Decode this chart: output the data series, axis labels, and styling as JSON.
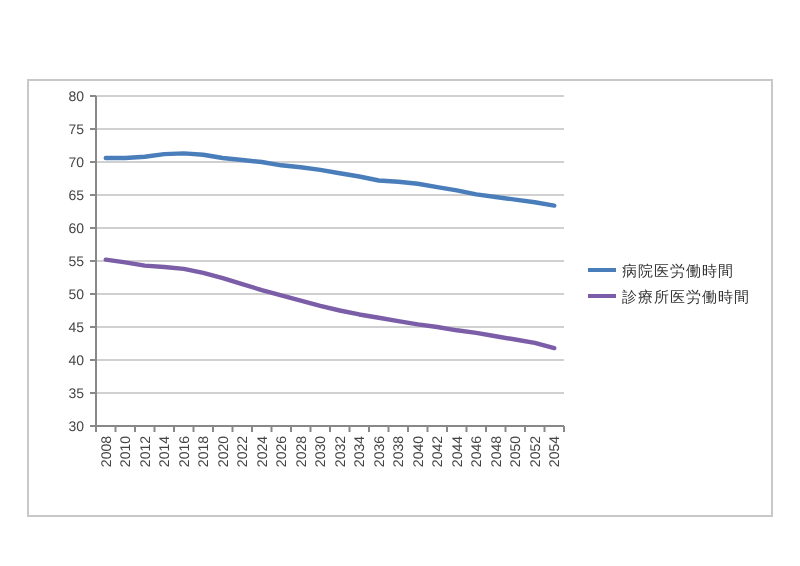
{
  "chart_data": {
    "type": "line",
    "categories": [
      "2008",
      "2010",
      "2012",
      "2014",
      "2016",
      "2018",
      "2020",
      "2022",
      "2024",
      "2026",
      "2028",
      "2030",
      "2032",
      "2034",
      "2036",
      "2038",
      "2040",
      "2042",
      "2044",
      "2046",
      "2048",
      "2050",
      "2052",
      "2054"
    ],
    "series": [
      {
        "name": "病院医労働時間",
        "color": "#4a7ebb",
        "values": [
          70.6,
          70.6,
          70.8,
          71.2,
          71.3,
          71.1,
          70.6,
          70.3,
          70.0,
          69.5,
          69.2,
          68.8,
          68.3,
          67.8,
          67.2,
          67.0,
          66.7,
          66.2,
          65.7,
          65.1,
          64.7,
          64.3,
          63.9,
          63.4
        ]
      },
      {
        "name": "診療所医労働時間",
        "color": "#7b5ea7",
        "values": [
          55.2,
          54.8,
          54.3,
          54.1,
          53.8,
          53.2,
          52.4,
          51.5,
          50.6,
          49.8,
          49.0,
          48.2,
          47.5,
          46.9,
          46.4,
          45.9,
          45.4,
          45.0,
          44.5,
          44.1,
          43.6,
          43.1,
          42.6,
          41.8
        ]
      }
    ],
    "ylim": [
      30,
      80
    ],
    "yticks": [
      30,
      35,
      40,
      45,
      50,
      55,
      60,
      65,
      70,
      75,
      80
    ],
    "grid": "y",
    "legend": "right",
    "marker": "none",
    "line_style": "solid"
  }
}
